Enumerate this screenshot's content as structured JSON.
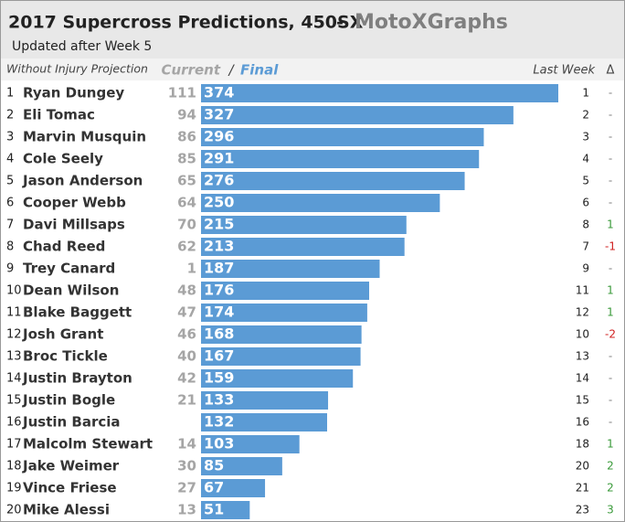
{
  "chart_data": {
    "type": "bar",
    "title": "2017 Supercross Predictions, 450SX",
    "title_separator": "-",
    "brand": "MotoXGraphs",
    "subtitle": "Updated after Week 5",
    "header": {
      "projection": "Without Injury Projection",
      "current": "Current",
      "slash": "/",
      "final": "Final",
      "last_week": "Last Week",
      "change": "Δ"
    },
    "ranks": [
      1,
      2,
      3,
      4,
      5,
      6,
      7,
      8,
      9,
      10,
      11,
      12,
      13,
      14,
      15,
      16,
      17,
      18,
      19,
      20
    ],
    "categories": [
      "Ryan Dungey",
      "Eli Tomac",
      "Marvin Musquin",
      "Cole Seely",
      "Jason Anderson",
      "Cooper Webb",
      "Davi Millsaps",
      "Chad Reed",
      "Trey Canard",
      "Dean Wilson",
      "Blake Baggett",
      "Josh Grant",
      "Broc Tickle",
      "Justin Brayton",
      "Justin Bogle",
      "Justin Barcia",
      "Malcolm Stewart",
      "Jake Weimer",
      "Vince Friese",
      "Mike Alessi"
    ],
    "current": [
      111,
      94,
      86,
      85,
      65,
      64,
      70,
      62,
      1,
      48,
      47,
      46,
      40,
      42,
      21,
      null,
      14,
      30,
      27,
      13
    ],
    "values": [
      374,
      327,
      296,
      291,
      276,
      250,
      215,
      213,
      187,
      176,
      174,
      168,
      167,
      159,
      133,
      132,
      103,
      85,
      67,
      51
    ],
    "last_week": [
      1,
      2,
      3,
      4,
      5,
      6,
      8,
      7,
      9,
      11,
      12,
      10,
      13,
      14,
      15,
      16,
      18,
      20,
      21,
      23
    ],
    "change": [
      "-",
      "-",
      "-",
      "-",
      "-",
      "-",
      "1",
      "-1",
      "-",
      "1",
      "1",
      "-2",
      "-",
      "-",
      "-",
      "-",
      "1",
      "2",
      "2",
      "3"
    ],
    "color": "#5b9bd5",
    "current_color": "#a5a5a5",
    "up_color": "#3a9a3a",
    "down_color": "#d02020",
    "flat_color": "#808080"
  }
}
